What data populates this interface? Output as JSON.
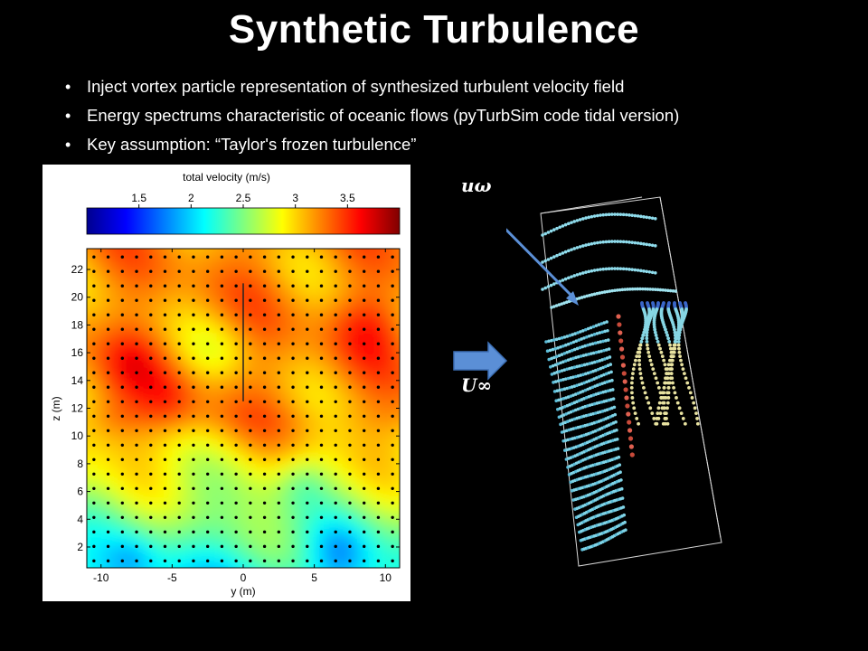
{
  "slide": {
    "title": "Synthetic Turbulence",
    "bullets": [
      "Inject vortex particle representation of synthesized turbulent velocity field",
      "Energy spectrums characteristic of oceanic flows (pyTurbSim code tidal version)",
      "Key assumption: “Taylor's frozen turbulence”"
    ]
  },
  "chart_data": {
    "type": "heatmap",
    "colorbar": {
      "title": "total velocity (m/s)",
      "ticks": [
        "1.5",
        "2",
        "2.5",
        "3",
        "3.5"
      ],
      "range": [
        1.0,
        4.0
      ],
      "colormap": "jet"
    },
    "xlabel": "y (m)",
    "ylabel": "z (m)",
    "xticks": [
      "-10",
      "-5",
      "0",
      "5",
      "10"
    ],
    "yticks": [
      "2",
      "4",
      "6",
      "8",
      "10",
      "12",
      "14",
      "16",
      "18",
      "20",
      "22"
    ],
    "xlim": [
      -11,
      11
    ],
    "ylim": [
      0.5,
      23.5
    ],
    "grid_points": "22 x 22 measurement points (y = -10.5..10.5, z = 1..22)"
  },
  "diagram": {
    "label_u_omega": "uω",
    "label_u_inf": "U∞",
    "arrow_color": "#5b8fd6"
  }
}
